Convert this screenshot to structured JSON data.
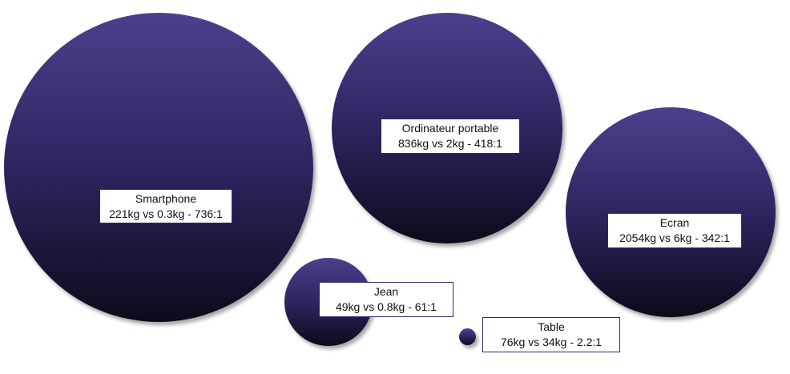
{
  "items": [
    {
      "name": "Smartphone",
      "detail": "221kg vs 0.3kg - 736:1",
      "ratio": 736
    },
    {
      "name": "Ordinateur portable",
      "detail": "836kg vs 2kg - 418:1",
      "ratio": 418
    },
    {
      "name": "Ecran",
      "detail": "2054kg vs 6kg - 342:1",
      "ratio": 342
    },
    {
      "name": "Jean",
      "detail": "49kg vs 0.8kg - 61:1",
      "ratio": 61
    },
    {
      "name": "Table",
      "detail": "76kg vs 34kg - 2.2:1",
      "ratio": 2.2
    }
  ],
  "colors": {
    "bubble_top": "#4c3f8c",
    "bubble_bottom": "#0c0a1a",
    "label_border": "#2e2a6e"
  }
}
